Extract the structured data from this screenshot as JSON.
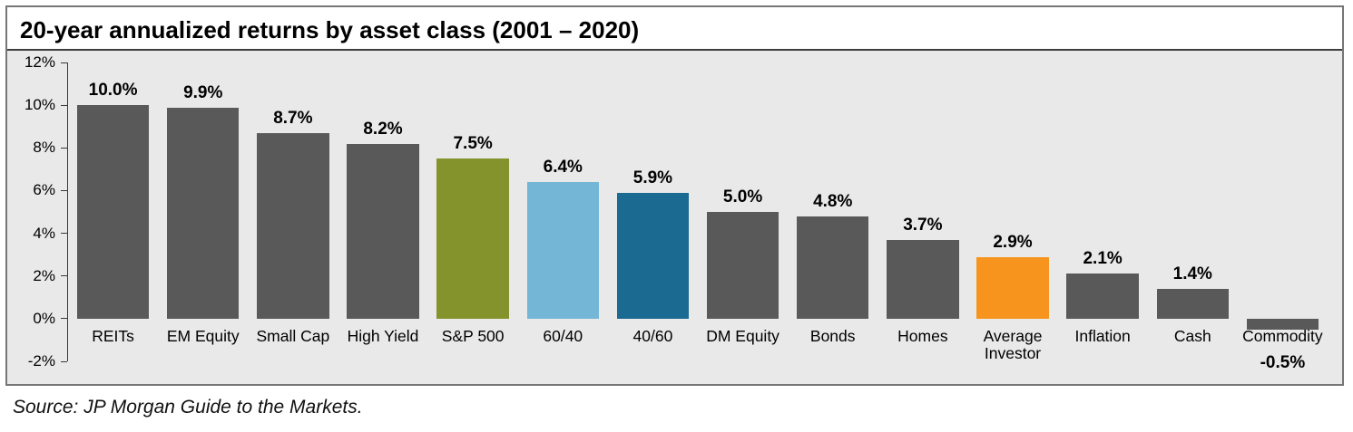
{
  "chart_data": {
    "type": "bar",
    "title": "20-year annualized returns by asset class (2001 – 2020)",
    "categories": [
      "REITs",
      "EM Equity",
      "Small Cap",
      "High Yield",
      "S&P 500",
      "60/40",
      "40/60",
      "DM Equity",
      "Bonds",
      "Homes",
      "Average Investor",
      "Inflation",
      "Cash",
      "Commodity"
    ],
    "values": [
      10.0,
      9.9,
      8.7,
      8.2,
      7.5,
      6.4,
      5.9,
      5.0,
      4.8,
      3.7,
      2.9,
      2.1,
      1.4,
      -0.5
    ],
    "value_labels": [
      "10.0%",
      "9.9%",
      "8.7%",
      "8.2%",
      "7.5%",
      "6.4%",
      "5.9%",
      "5.0%",
      "4.8%",
      "3.7%",
      "2.9%",
      "2.1%",
      "1.4%",
      "-0.5%"
    ],
    "bar_colors": [
      "#595959",
      "#595959",
      "#595959",
      "#595959",
      "#85932d",
      "#74b6d5",
      "#1b6a91",
      "#595959",
      "#595959",
      "#595959",
      "#f7941e",
      "#595959",
      "#595959",
      "#595959"
    ],
    "xlabel": "",
    "ylabel": "",
    "ylim": [
      -2,
      12
    ],
    "ytick_values": [
      12,
      10,
      8,
      6,
      4,
      2,
      0,
      -2
    ],
    "ytick_labels": [
      "12%",
      "10%",
      "8%",
      "6%",
      "4%",
      "2%",
      "0%",
      "-2%"
    ],
    "grid": false,
    "legend": null
  },
  "source_text": "Source: JP Morgan Guide to the Markets.",
  "colors": {
    "default_bar": "#595959",
    "highlight_olive": "#85932d",
    "highlight_light_blue": "#74b6d5",
    "highlight_dark_blue": "#1b6a91",
    "highlight_orange": "#f7941e",
    "chart_background": "#e9e9e9",
    "box_border": "#767676"
  }
}
